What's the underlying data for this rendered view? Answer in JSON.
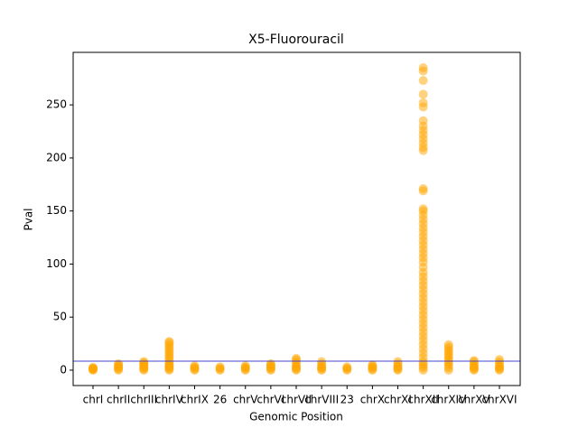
{
  "chart_data": {
    "type": "strip",
    "title": "X5-Fluorouracil",
    "x_label": "Genomic Position",
    "y_label": "Pval",
    "categories": [
      "chrI",
      "chrII",
      "chrIII",
      "chrIV",
      "chrIX",
      "26",
      "chrV",
      "chrVI",
      "chrVII",
      "chrVIII",
      "23",
      "chrX",
      "chrXI",
      "chrXII",
      "chrXIV",
      "chrXV",
      "chrXVI"
    ],
    "values": [
      [
        0,
        0.5,
        1,
        1.5,
        2,
        2.5
      ],
      [
        0,
        1,
        2,
        3,
        4,
        5,
        6
      ],
      [
        0,
        1,
        2,
        3,
        4,
        5,
        6,
        7,
        8
      ],
      [
        0,
        1,
        2,
        3,
        4,
        5,
        6,
        8,
        10,
        12,
        14,
        16,
        18,
        20,
        22,
        24,
        26,
        27
      ],
      [
        0,
        1,
        2,
        3,
        4
      ],
      [
        0,
        1,
        2,
        3
      ],
      [
        0,
        1,
        2,
        3,
        4
      ],
      [
        0,
        1,
        2,
        3,
        4,
        5,
        6
      ],
      [
        0,
        1,
        2,
        3,
        4,
        6,
        8,
        10,
        11
      ],
      [
        0,
        1,
        2,
        3,
        4,
        6,
        8
      ],
      [
        0,
        1,
        2,
        3
      ],
      [
        0,
        1,
        2,
        3,
        4,
        5
      ],
      [
        0,
        1,
        2,
        3,
        4,
        6,
        8
      ],
      [
        0,
        2,
        4,
        6,
        8,
        12,
        16,
        20,
        24,
        28,
        32,
        36,
        40,
        44,
        48,
        52,
        56,
        60,
        64,
        68,
        72,
        76,
        80,
        84,
        88,
        92,
        97,
        102,
        106,
        110,
        114,
        118,
        122,
        126,
        130,
        134,
        138,
        142,
        146,
        150,
        152,
        169,
        171,
        207,
        210,
        214,
        218,
        222,
        226,
        230,
        235,
        248,
        252,
        260,
        273,
        282,
        285
      ],
      [
        0,
        2,
        4,
        6,
        8,
        10,
        12,
        14,
        16,
        18,
        20,
        22,
        24
      ],
      [
        0,
        1,
        2,
        3,
        4,
        6,
        8,
        9
      ],
      [
        0,
        1,
        2,
        3,
        4,
        6,
        8,
        10
      ]
    ],
    "color": "orange",
    "threshold": 8.5,
    "threshold_color": "#4444cc",
    "ylim": [
      -14.5,
      299.5
    ],
    "yticks": [
      0,
      50,
      100,
      150,
      200,
      250
    ]
  }
}
